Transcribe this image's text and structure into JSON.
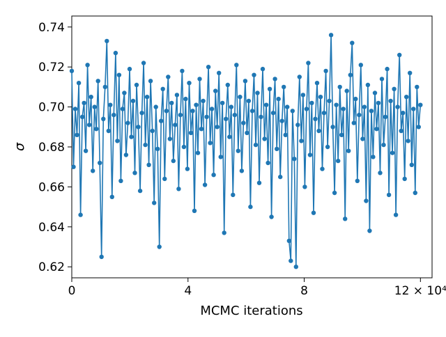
{
  "chart_data": {
    "type": "line",
    "title": "",
    "xlabel": "MCMC iterations",
    "ylabel": "σ",
    "legend": "none",
    "grid": false,
    "line_color": "#1f77b4",
    "marker": "circle",
    "marker_color": "#1f77b4",
    "xlim": [
      0,
      124000
    ],
    "ylim": [
      0.6145,
      0.7455
    ],
    "xticks": [
      {
        "value": 0,
        "label": "0"
      },
      {
        "value": 40000,
        "label": "4"
      },
      {
        "value": 80000,
        "label": "8"
      },
      {
        "value": 120000,
        "label": "12 × 10⁴"
      }
    ],
    "yticks": [
      {
        "value": 0.62,
        "label": "0.62"
      },
      {
        "value": 0.64,
        "label": "0.64"
      },
      {
        "value": 0.66,
        "label": "0.66"
      },
      {
        "value": 0.68,
        "label": "0.68"
      },
      {
        "value": 0.7,
        "label": "0.70"
      },
      {
        "value": 0.72,
        "label": "0.72"
      },
      {
        "value": 0.74,
        "label": "0.74"
      }
    ],
    "x_start": 0,
    "x_end": 120000,
    "values": [
      0.718,
      0.67,
      0.699,
      0.686,
      0.712,
      0.646,
      0.695,
      0.702,
      0.678,
      0.721,
      0.691,
      0.705,
      0.668,
      0.7,
      0.689,
      0.713,
      0.672,
      0.625,
      0.694,
      0.71,
      0.733,
      0.688,
      0.701,
      0.655,
      0.696,
      0.727,
      0.683,
      0.716,
      0.663,
      0.699,
      0.707,
      0.676,
      0.692,
      0.719,
      0.685,
      0.703,
      0.667,
      0.711,
      0.69,
      0.658,
      0.697,
      0.722,
      0.681,
      0.705,
      0.671,
      0.713,
      0.688,
      0.652,
      0.7,
      0.679,
      0.63,
      0.693,
      0.709,
      0.664,
      0.698,
      0.715,
      0.684,
      0.702,
      0.673,
      0.691,
      0.706,
      0.659,
      0.696,
      0.718,
      0.68,
      0.704,
      0.669,
      0.712,
      0.687,
      0.698,
      0.648,
      0.701,
      0.677,
      0.714,
      0.689,
      0.703,
      0.661,
      0.695,
      0.72,
      0.682,
      0.699,
      0.666,
      0.708,
      0.69,
      0.717,
      0.675,
      0.702,
      0.637,
      0.694,
      0.711,
      0.685,
      0.7,
      0.656,
      0.696,
      0.721,
      0.678,
      0.705,
      0.668,
      0.692,
      0.713,
      0.687,
      0.703,
      0.65,
      0.698,
      0.716,
      0.681,
      0.707,
      0.662,
      0.695,
      0.719,
      0.684,
      0.701,
      0.672,
      0.709,
      0.645,
      0.697,
      0.714,
      0.679,
      0.704,
      0.665,
      0.693,
      0.71,
      0.686,
      0.7,
      0.633,
      0.623,
      0.698,
      0.674,
      0.62,
      0.691,
      0.715,
      0.683,
      0.706,
      0.66,
      0.699,
      0.722,
      0.676,
      0.702,
      0.647,
      0.694,
      0.712,
      0.688,
      0.705,
      0.669,
      0.697,
      0.718,
      0.68,
      0.703,
      0.736,
      0.69,
      0.657,
      0.701,
      0.673,
      0.71,
      0.686,
      0.699,
      0.644,
      0.708,
      0.678,
      0.716,
      0.732,
      0.692,
      0.704,
      0.663,
      0.696,
      0.721,
      0.684,
      0.7,
      0.653,
      0.711,
      0.638,
      0.698,
      0.675,
      0.707,
      0.689,
      0.702,
      0.667,
      0.714,
      0.681,
      0.695,
      0.719,
      0.656,
      0.703,
      0.677,
      0.709,
      0.646,
      0.7,
      0.726,
      0.688,
      0.697,
      0.664,
      0.705,
      0.683,
      0.717,
      0.671,
      0.699,
      0.657,
      0.71,
      0.69,
      0.701
    ]
  }
}
